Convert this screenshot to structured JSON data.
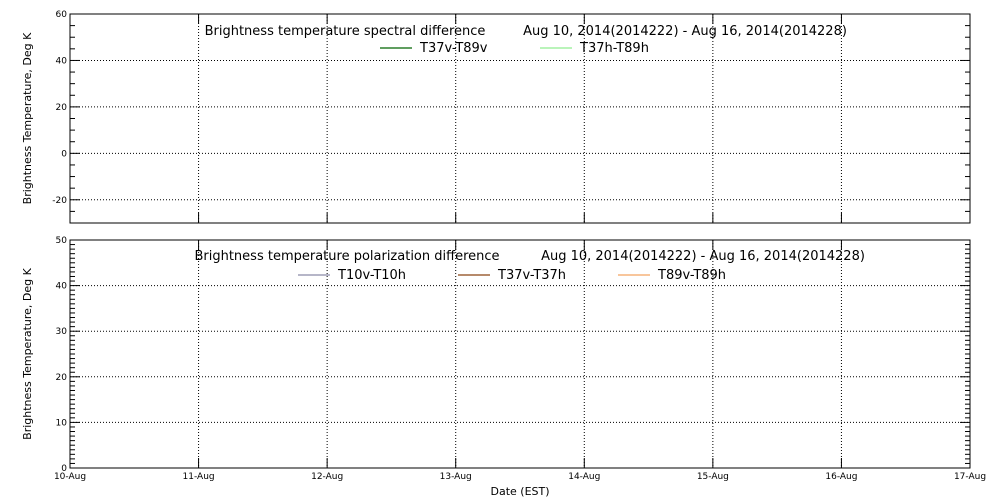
{
  "chart_data": [
    {
      "type": "line",
      "title": "Brightness temperature spectral difference",
      "date_range": "Aug 10, 2014(2014222) - Aug 16, 2014(2014228)",
      "ylabel": "Brightness Temperature, Deg K",
      "xlabel": "",
      "xlim": [
        "2014-08-10",
        "2014-08-17"
      ],
      "ylim": [
        -30,
        60
      ],
      "yticks": [
        -20,
        0,
        20,
        40,
        60
      ],
      "yminor_step": 5,
      "grid": true,
      "legend_position": "top-center",
      "series": [
        {
          "name": "T37v-T89v",
          "color": "#006400",
          "values": []
        },
        {
          "name": "T37h-T89h",
          "color": "#90ee90",
          "values": []
        }
      ]
    },
    {
      "type": "line",
      "title": "Brightness temperature polarization difference",
      "date_range": "Aug 10, 2014(2014222) - Aug 16, 2014(2014228)",
      "ylabel": "Brightness Temperature, Deg K",
      "xlabel": "Date (EST)",
      "xlim": [
        "2014-08-10",
        "2014-08-17"
      ],
      "x_tick_labels": [
        "10-Aug",
        "11-Aug",
        "12-Aug",
        "13-Aug",
        "14-Aug",
        "15-Aug",
        "16-Aug",
        "17-Aug"
      ],
      "ylim": [
        0,
        50
      ],
      "yticks": [
        0,
        10,
        20,
        30,
        40,
        50
      ],
      "yminor_step": 1,
      "grid": true,
      "legend_position": "top-center",
      "series": [
        {
          "name": "T10v-T10h",
          "color": "#8a8aa8",
          "values": []
        },
        {
          "name": "T37v-T37h",
          "color": "#8b4513",
          "values": []
        },
        {
          "name": "T89v-T89h",
          "color": "#f4a460",
          "values": []
        }
      ]
    }
  ]
}
